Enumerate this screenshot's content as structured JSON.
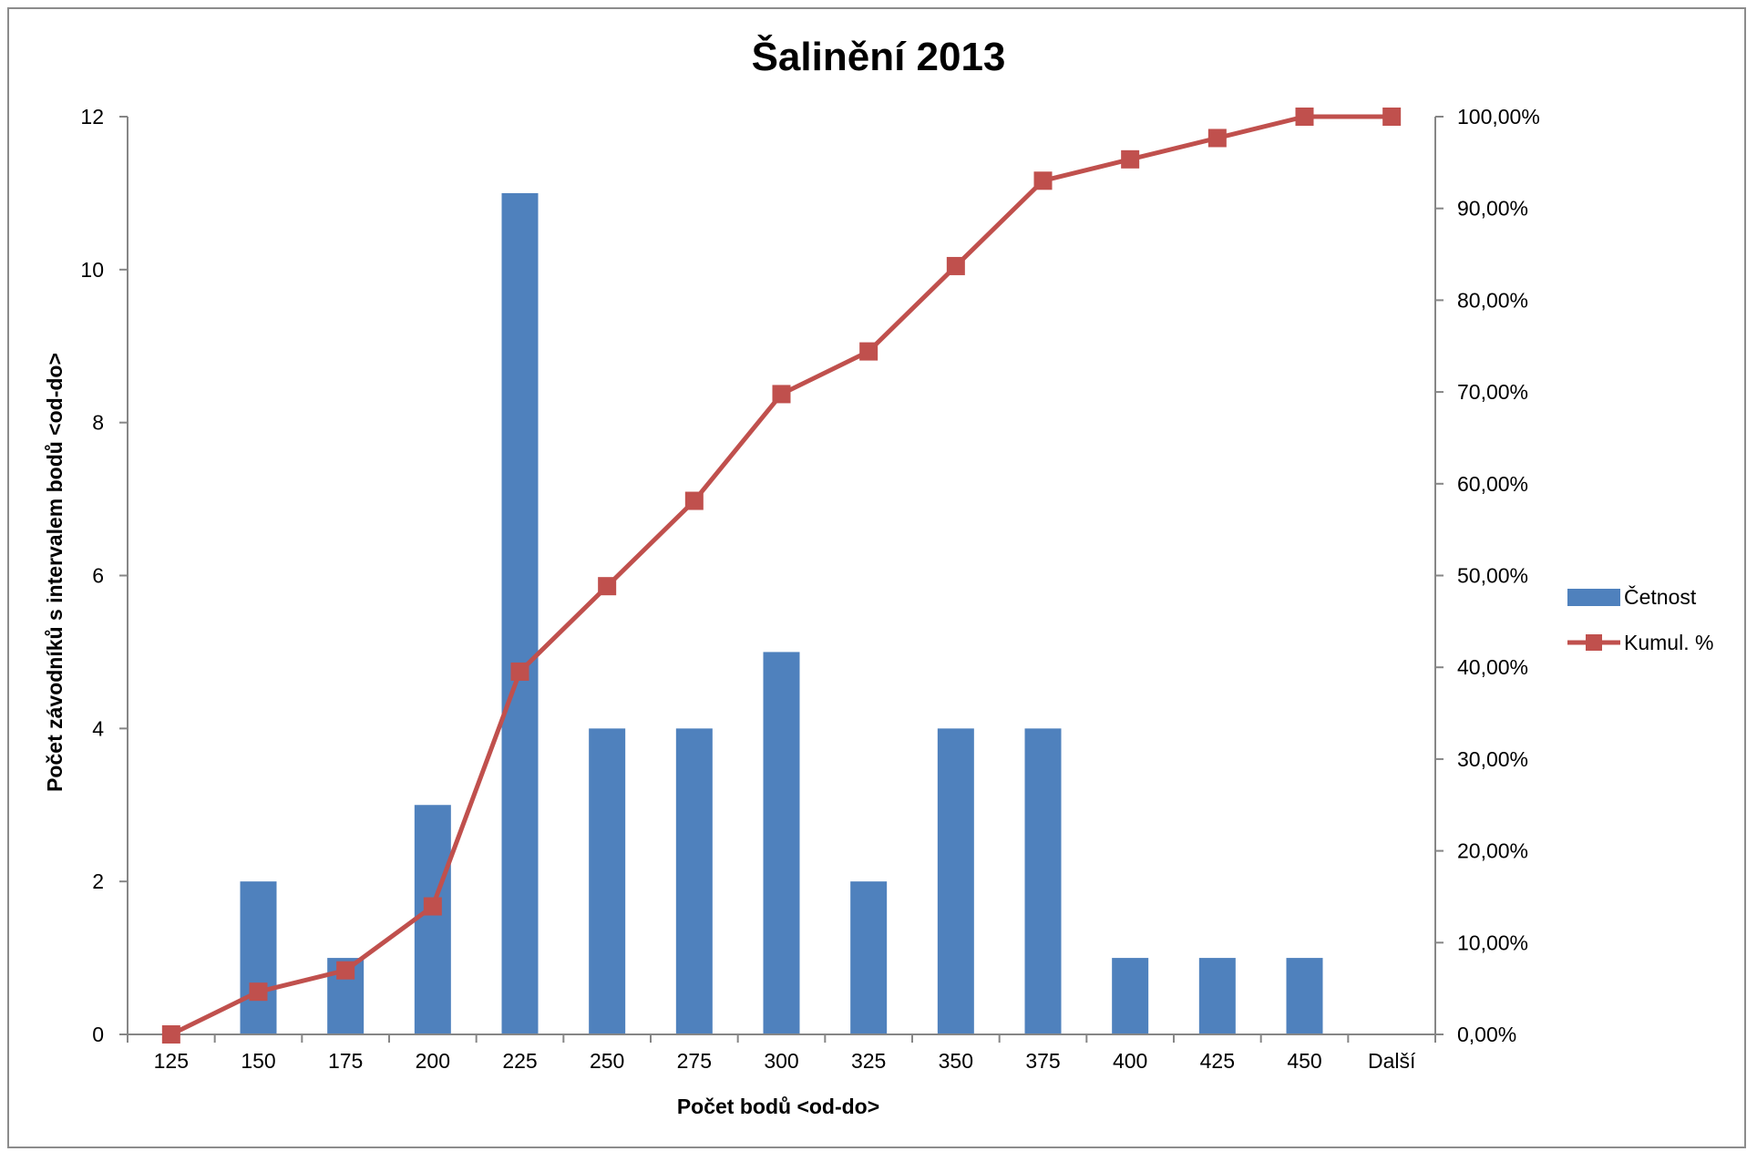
{
  "chart_data": {
    "type": "bar",
    "title": "Šalinění 2013",
    "xlabel": "Počet bodů <od-do>",
    "ylabel": "Počet závodníků s intervalem bodů <od-do>",
    "categories": [
      "125",
      "150",
      "175",
      "200",
      "225",
      "250",
      "275",
      "300",
      "325",
      "350",
      "375",
      "400",
      "425",
      "450",
      "Další"
    ],
    "ylim": [
      0,
      12
    ],
    "y_ticks": [
      "0",
      "2",
      "4",
      "6",
      "8",
      "10",
      "12"
    ],
    "y2lim": [
      0,
      100
    ],
    "y2_ticks": [
      "0,00%",
      "10,00%",
      "20,00%",
      "30,00%",
      "40,00%",
      "50,00%",
      "60,00%",
      "70,00%",
      "80,00%",
      "90,00%",
      "100,00%"
    ],
    "grid": false,
    "legend_position": "right",
    "series": [
      {
        "name": "Četnost",
        "type": "bar",
        "axis": "left",
        "color": "#4F81BD",
        "values": [
          0,
          2,
          1,
          3,
          11,
          4,
          4,
          5,
          2,
          4,
          4,
          1,
          1,
          1,
          0
        ]
      },
      {
        "name": "Kumul. %",
        "type": "line",
        "axis": "right",
        "color": "#C0504D",
        "marker": "square",
        "values": [
          0.0,
          4.65,
          6.98,
          13.95,
          39.53,
          48.84,
          58.14,
          69.77,
          74.42,
          83.72,
          93.02,
          95.35,
          97.67,
          100.0,
          100.0
        ]
      }
    ]
  }
}
